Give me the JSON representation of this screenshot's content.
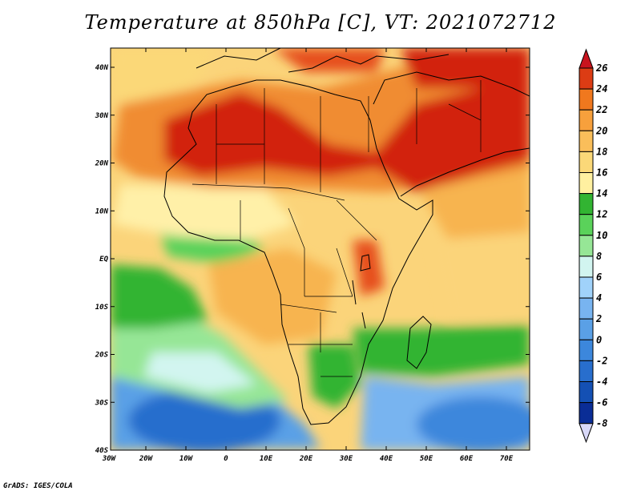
{
  "title": "Temperature at 850hPa [C], VT: 2021072712",
  "credit": "GrADS: IGES/COLA",
  "map": {
    "lat_ticks": [
      "40N",
      "30N",
      "20N",
      "10N",
      "EQ",
      "10S",
      "20S",
      "30S",
      "40S"
    ],
    "lon_ticks": [
      "30W",
      "20W",
      "10W",
      "0",
      "10E",
      "20E",
      "30E",
      "40E",
      "50E",
      "60E",
      "70E"
    ]
  },
  "colorbar": {
    "labels": [
      "26",
      "24",
      "22",
      "20",
      "18",
      "16",
      "14",
      "12",
      "10",
      "8",
      "6",
      "4",
      "2",
      "0",
      "-2",
      "-4",
      "-6",
      "-8"
    ],
    "colors": [
      "#c8141e",
      "#dc3c14",
      "#f0781e",
      "#f7a03c",
      "#fabe5a",
      "#fbd878",
      "#fff0a0",
      "#32b432",
      "#5ad25a",
      "#96e696",
      "#d2f5f0",
      "#a0d2fa",
      "#78b4f0",
      "#5aa0e6",
      "#3c87dc",
      "#286ecd",
      "#1450b4",
      "#0a2d96",
      "#141e6e"
    ]
  },
  "palette": {
    "red": "#d2230f",
    "orange_red": "#e6501e",
    "orange": "#f08c32",
    "light_orange": "#f7b450",
    "pale_yellow": "#fbd47a",
    "cream": "#fff0a8",
    "green": "#32b432",
    "light_green": "#96e696",
    "pale_cyan": "#d2f5f0",
    "light_blue": "#a0d2fa",
    "blue": "#5aa0e6",
    "dark_blue": "#286ecd"
  }
}
